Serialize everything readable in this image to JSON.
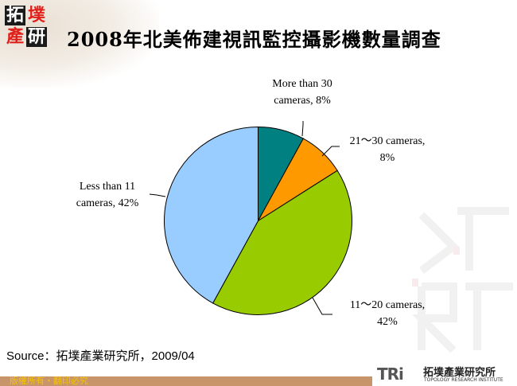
{
  "header": {
    "logo_chars": [
      "拓",
      "墣",
      "產",
      "研"
    ],
    "title": "2008年北美佈建視訊監控攝影機數量調查"
  },
  "chart_data": {
    "type": "pie",
    "title": "2008年北美佈建視訊監控攝影機數量調查",
    "categories": [
      "More than 30 cameras",
      "21～30 cameras",
      "11～20 cameras",
      "Less than 11 cameras"
    ],
    "values": [
      8,
      8,
      42,
      42
    ],
    "unit": "%",
    "colors": [
      "#008080",
      "#ff9900",
      "#99cc00",
      "#99ccff"
    ],
    "start_angle_deg": 0,
    "direction": "clockwise",
    "labels": [
      {
        "line1": "More than 30",
        "line2": "cameras, 8%"
      },
      {
        "line1": "21～30 cameras,",
        "line2": "8%"
      },
      {
        "line1": "11～20 cameras,",
        "line2": "42%"
      },
      {
        "line1": "Less than 11",
        "line2": "cameras, 42%"
      }
    ],
    "legend": "none"
  },
  "source": {
    "text": "Source：拓墣產業研究所，2009/04"
  },
  "footer": {
    "copyright": "版權所有・翻印必究",
    "brand_logo": "TRi",
    "brand_cn": "拓墣產業研究所",
    "brand_en": "TOPOLOGY RESEARCH INSTITUTE"
  }
}
